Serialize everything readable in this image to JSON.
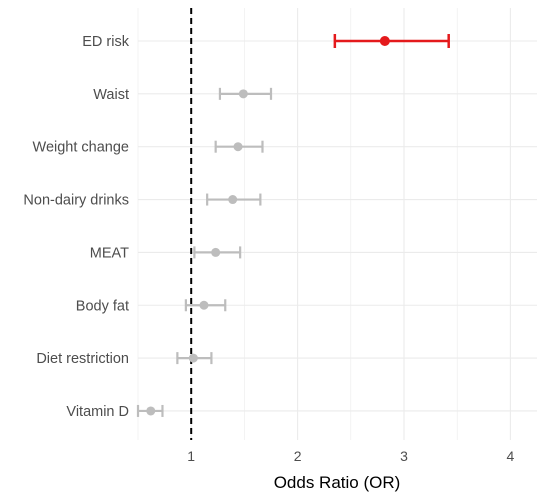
{
  "chart_data": {
    "type": "forest",
    "xlabel": "Odds Ratio (OR)",
    "ylabel": "",
    "xlim": [
      0.5,
      4.25
    ],
    "x_ticks": [
      1,
      2,
      3,
      4
    ],
    "reference_line": 1,
    "grid": true,
    "legend": "none",
    "colors": {
      "highlight": "#e41a1c",
      "default": "#bdbdbd",
      "reference": "#000000",
      "grid": "#ebebeb"
    },
    "rows": [
      {
        "label": "ED risk",
        "or": 2.82,
        "lower": 2.35,
        "upper": 3.42,
        "highlight": true
      },
      {
        "label": "Waist",
        "or": 1.49,
        "lower": 1.27,
        "upper": 1.75,
        "highlight": false
      },
      {
        "label": "Weight change",
        "or": 1.44,
        "lower": 1.23,
        "upper": 1.67,
        "highlight": false
      },
      {
        "label": "Non-dairy drinks",
        "or": 1.39,
        "lower": 1.15,
        "upper": 1.65,
        "highlight": false
      },
      {
        "label": "MEAT",
        "or": 1.23,
        "lower": 1.03,
        "upper": 1.46,
        "highlight": false
      },
      {
        "label": "Body fat",
        "or": 1.12,
        "lower": 0.95,
        "upper": 1.32,
        "highlight": false
      },
      {
        "label": "Diet restriction",
        "or": 1.02,
        "lower": 0.87,
        "upper": 1.19,
        "highlight": false
      },
      {
        "label": "Vitamin D",
        "or": 0.62,
        "lower": 0.5,
        "upper": 0.73,
        "highlight": false
      }
    ]
  }
}
